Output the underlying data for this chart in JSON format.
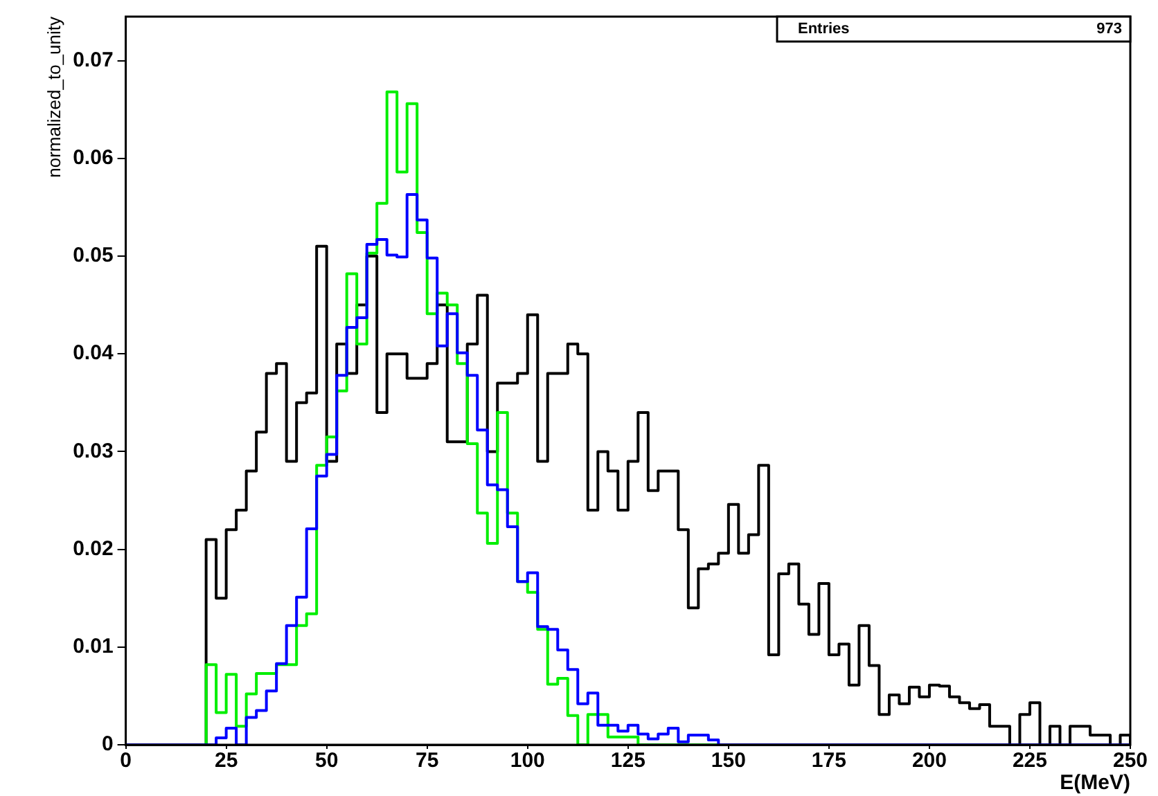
{
  "chart_data": {
    "type": "histogram",
    "xlabel": "E(MeV)",
    "ylabel": "normalized_to_unity",
    "annotations": [
      "Entries",
      "973"
    ],
    "xlim": [
      0,
      250
    ],
    "ylim": [
      0,
      0.0745
    ],
    "xticks": [
      0,
      25,
      50,
      75,
      100,
      125,
      150,
      175,
      200,
      225,
      250
    ],
    "yticks": [
      0,
      0.01,
      0.02,
      0.03,
      0.04,
      0.05,
      0.06,
      0.07
    ],
    "grid": false,
    "bins": [
      0,
      2.5,
      5,
      7.5,
      10,
      12.5,
      15,
      17.5,
      20,
      22.5,
      25,
      27.5,
      30,
      32.5,
      35,
      37.5,
      40,
      42.5,
      45,
      47.5,
      50,
      52.5,
      55,
      57.5,
      60,
      62.5,
      65,
      67.5,
      70,
      72.5,
      75,
      77.5,
      80,
      82.5,
      85,
      87.5,
      90,
      92.5,
      95,
      97.5,
      100,
      102.5,
      105,
      107.5,
      110,
      112.5,
      115,
      117.5,
      120,
      122.5,
      125,
      127.5,
      130,
      132.5,
      135,
      137.5,
      140,
      142.5,
      145,
      147.5,
      150,
      152.5,
      155,
      157.5,
      160,
      162.5,
      165,
      167.5,
      170,
      172.5,
      175,
      177.5,
      180,
      182.5,
      185,
      187.5,
      190,
      192.5,
      195,
      197.5,
      200,
      202.5,
      205,
      207.5,
      210,
      212.5,
      215,
      217.5,
      220,
      222.5,
      225,
      227.5,
      230,
      232.5,
      235,
      237.5,
      240,
      242.5,
      245,
      247.5,
      250
    ],
    "series": [
      {
        "color": "#000000",
        "values": [
          0,
          0,
          0,
          0,
          0,
          0,
          0,
          0,
          0.021,
          0.015,
          0.022,
          0.024,
          0.028,
          0.032,
          0.038,
          0.039,
          0.029,
          0.035,
          0.036,
          0.051,
          0.029,
          0.041,
          0.038,
          0.045,
          0.05,
          0.034,
          0.04,
          0.04,
          0.0375,
          0.0375,
          0.039,
          0.045,
          0.031,
          0.031,
          0.041,
          0.046,
          0.03,
          0.037,
          0.037,
          0.038,
          0.044,
          0.029,
          0.038,
          0.038,
          0.041,
          0.04,
          0.024,
          0.03,
          0.028,
          0.024,
          0.029,
          0.034,
          0.026,
          0.028,
          0.028,
          0.022,
          0.014,
          0.018,
          0.0185,
          0.0196,
          0.0246,
          0.0196,
          0.0215,
          0.0286,
          0.0092,
          0.0175,
          0.0185,
          0.0144,
          0.0113,
          0.0165,
          0.0092,
          0.0103,
          0.0061,
          0.0122,
          0.0081,
          0.0031,
          0.0051,
          0.0042,
          0.0059,
          0.0049,
          0.0061,
          0.006,
          0.0049,
          0.0043,
          0.0037,
          0.0041,
          0.0019,
          0.0019,
          0,
          0.0031,
          0.0043,
          0,
          0.0019,
          0,
          0.0019,
          0.0019,
          0.001,
          0.001,
          0,
          0.001
        ]
      },
      {
        "color": "#00ee00",
        "values": [
          0,
          0,
          0,
          0,
          0,
          0,
          0,
          0,
          0.0082,
          0.0033,
          0.0072,
          0.0019,
          0.0052,
          0.0073,
          0.0073,
          0.0082,
          0.0082,
          0.0122,
          0.0134,
          0.0286,
          0.0315,
          0.0362,
          0.0482,
          0.041,
          0.0503,
          0.0554,
          0.0668,
          0.0586,
          0.0656,
          0.0524,
          0.0441,
          0.0462,
          0.045,
          0.039,
          0.0308,
          0.0237,
          0.0206,
          0.034,
          0.0237,
          0.0167,
          0.0156,
          0.0118,
          0.0062,
          0.0068,
          0.003,
          0,
          0.0031,
          0.0031,
          0.0008,
          0.0008,
          0.0008,
          0,
          0,
          0,
          0,
          0,
          0,
          0,
          0,
          0,
          0,
          0,
          0,
          0,
          0,
          0,
          0,
          0,
          0,
          0,
          0,
          0,
          0,
          0,
          0,
          0,
          0,
          0,
          0,
          0,
          0,
          0,
          0,
          0,
          0,
          0,
          0,
          0,
          0,
          0,
          0,
          0,
          0,
          0,
          0,
          0,
          0,
          0,
          0,
          0
        ]
      },
      {
        "color": "#0000ff",
        "values": [
          0,
          0,
          0,
          0,
          0,
          0,
          0,
          0,
          0,
          0.0007,
          0.0017,
          0,
          0.0028,
          0.0035,
          0.0055,
          0.0083,
          0.0122,
          0.0151,
          0.0221,
          0.0275,
          0.0297,
          0.0378,
          0.0427,
          0.0437,
          0.0512,
          0.0517,
          0.0501,
          0.0499,
          0.0563,
          0.0537,
          0.0498,
          0.0408,
          0.0441,
          0.0401,
          0.0378,
          0.0322,
          0.0266,
          0.0261,
          0.0223,
          0.0167,
          0.0176,
          0.0121,
          0.0118,
          0.0097,
          0.0077,
          0.0042,
          0.0053,
          0.002,
          0.002,
          0.0014,
          0.002,
          0.0011,
          0.0006,
          0.0011,
          0.0017,
          0.0003,
          0.001,
          0.001,
          0.0005,
          0,
          0,
          0,
          0,
          0,
          0,
          0,
          0,
          0,
          0,
          0,
          0,
          0,
          0,
          0,
          0,
          0,
          0,
          0,
          0,
          0,
          0,
          0,
          0,
          0,
          0,
          0,
          0,
          0,
          0,
          0,
          0,
          0,
          0,
          0,
          0,
          0,
          0,
          0,
          0,
          0
        ]
      }
    ]
  }
}
